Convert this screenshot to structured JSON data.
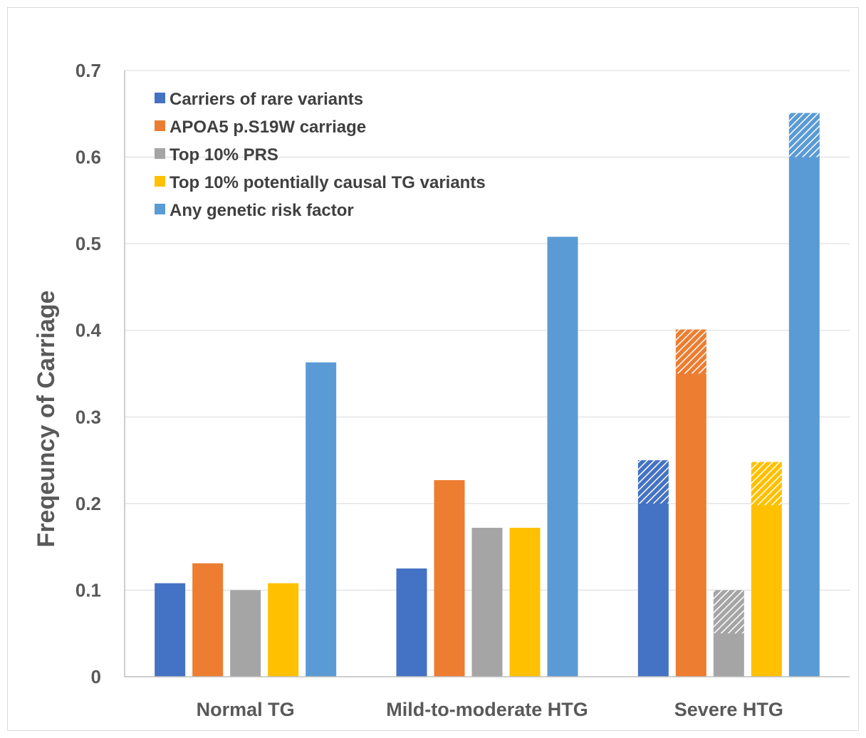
{
  "chart_data": {
    "type": "bar",
    "title": "",
    "xlabel": "",
    "ylabel": "Freqeuncy of Carriage",
    "ylim": [
      0,
      0.7
    ],
    "yticks": [
      "0",
      "0.1",
      "0.2",
      "0.3",
      "0.4",
      "0.5",
      "0.6",
      "0.7"
    ],
    "grid": true,
    "legend_position": "top-left",
    "categories": [
      "Normal TG",
      "Mild-to-moderate HTG",
      "Severe HTG"
    ],
    "series": [
      {
        "name": "Carriers of rare variants",
        "color": "#4472C4",
        "values": [
          0.108,
          0.125,
          0.25
        ],
        "hatched_from": [
          null,
          null,
          0.2
        ]
      },
      {
        "name": "APOA5 p.S19W carriage",
        "color": "#ED7D31",
        "values": [
          0.131,
          0.227,
          0.401
        ],
        "hatched_from": [
          null,
          null,
          0.35
        ]
      },
      {
        "name": "Top 10% PRS",
        "color": "#A5A5A5",
        "values": [
          0.1,
          0.172,
          0.1
        ],
        "hatched_from": [
          null,
          null,
          0.05
        ]
      },
      {
        "name": "Top 10% potentially causal TG variants",
        "color": "#FFC000",
        "values": [
          0.108,
          0.172,
          0.248
        ],
        "hatched_from": [
          null,
          null,
          0.198
        ]
      },
      {
        "name": "Any genetic risk factor",
        "color": "#5B9BD5",
        "values": [
          0.363,
          0.508,
          0.651
        ],
        "hatched_from": [
          null,
          null,
          0.6
        ]
      }
    ]
  }
}
